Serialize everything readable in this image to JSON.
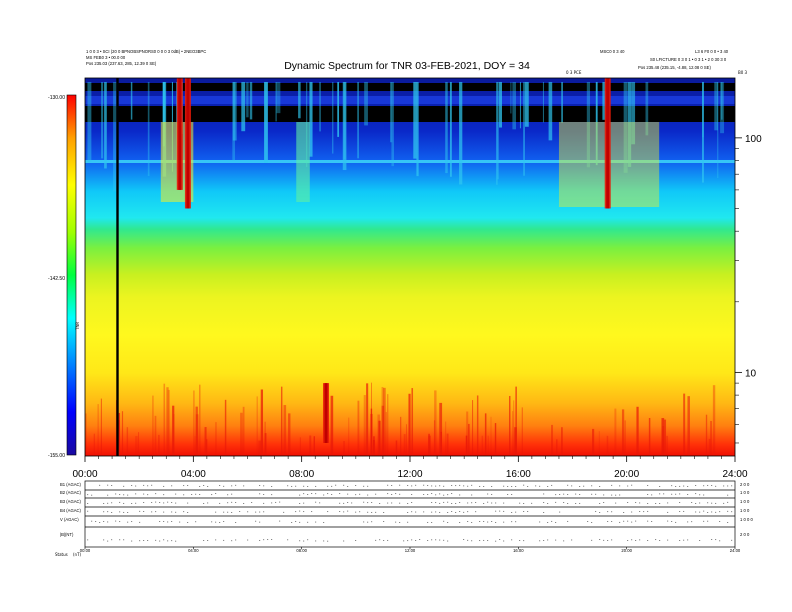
{
  "chart_data": {
    "type": "heatmap",
    "title": "Dynamic Spectrum for TNR 03-FEB-2021, DOY = 34",
    "header_left": [
      "1 0 0 3 • SCI (20 0 BPNOBSPNORS0 0 0 0 3 0dB) • 2NEO3BPC",
      "MS FEB0 3 • 00.0 00",
      "Pos   235.03 (237.63, 285, 12.39 0 SE)"
    ],
    "header_right": [
      "MSC0 0 3 40",
      "L3 6 F0 0 0 • 3 40",
      "S0 LFICTURE 0 3 0 1 • 0 3 1 • 2 0 30 3 0",
      "Pos   235.48 (235.15, -4.88, 12.08 0 SE)"
    ],
    "annotation": "0 3 PCE",
    "colorbar": {
      "label": "TNR",
      "ticks": [
        "-130.00",
        "-142.50",
        "-155.00"
      ],
      "range": [
        -155,
        -130
      ],
      "colors": [
        "#1a0aa0",
        "#0000ff",
        "#0080ff",
        "#00ffff",
        "#00ff40",
        "#a0ff00",
        "#ffff00",
        "#ffa000",
        "#ff0000"
      ]
    },
    "x_ticks": [
      "00:00",
      "04:00",
      "08:00",
      "12:00",
      "16:00",
      "20:00",
      "24:00"
    ],
    "xlim": [
      0,
      24
    ],
    "y_scale": "log",
    "y_ticks": [
      "100",
      "10"
    ],
    "y_tick_values": [
      100,
      10
    ],
    "ylim": [
      4.4,
      180
    ],
    "right_top_label": "B0 3",
    "marker_line_hour": 1.2,
    "bursts": [
      {
        "t": 3.5,
        "f_low": 60,
        "f_high": 180,
        "kind": "red"
      },
      {
        "t": 3.8,
        "f_low": 50,
        "f_high": 180,
        "kind": "red"
      },
      {
        "t": 8.9,
        "f_low": 5,
        "f_high": 9,
        "kind": "red"
      },
      {
        "t": 19.3,
        "f_low": 50,
        "f_high": 180,
        "kind": "red"
      }
    ],
    "panels": {
      "labels": [
        "B1 (AGAC)",
        "B2 (AGAC)",
        "B3 (AGAC)",
        "B4 (AGAC)",
        "V (AGAC)",
        "|B|(NT)"
      ],
      "right_scales": [
        "2 0 0",
        "1 0 0",
        "1 0 0",
        "1 0 0",
        "1 0 0 0",
        "2 0 0"
      ],
      "x_ticks": [
        "00:00",
        "04:00",
        "08:00",
        "12:00",
        "16:00",
        "20:00",
        "24:00"
      ],
      "footer_label": "Status",
      "footer_units": "(nT)"
    }
  }
}
